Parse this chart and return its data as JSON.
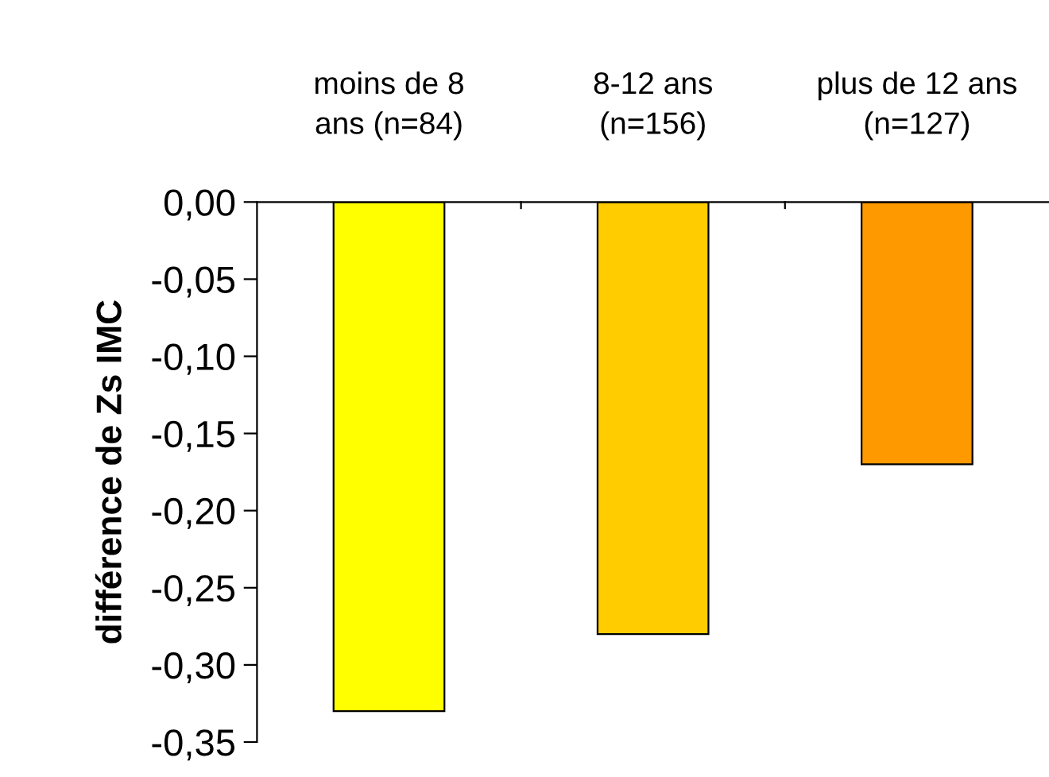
{
  "chart_data": {
    "type": "bar",
    "ylabel": "différence de Zs IMC",
    "categories": [
      "moins de 8\nans (n=84)",
      "8-12 ans\n(n=156)",
      "plus de 12 ans\n(n=127)"
    ],
    "values": [
      -0.33,
      -0.28,
      -0.17
    ],
    "colors": [
      "#ffff00",
      "#ffcc00",
      "#ff9900"
    ],
    "ylim": [
      -0.35,
      0
    ],
    "yticks": [
      {
        "value": 0,
        "label": "0,00"
      },
      {
        "value": -0.05,
        "label": "-0,05"
      },
      {
        "value": -0.1,
        "label": "-0,10"
      },
      {
        "value": -0.15,
        "label": "-0,15"
      },
      {
        "value": -0.2,
        "label": "-0,20"
      },
      {
        "value": -0.25,
        "label": "-0,25"
      },
      {
        "value": -0.3,
        "label": "-0,30"
      },
      {
        "value": -0.35,
        "label": "-0,35"
      }
    ],
    "grid": false,
    "legend": false
  }
}
